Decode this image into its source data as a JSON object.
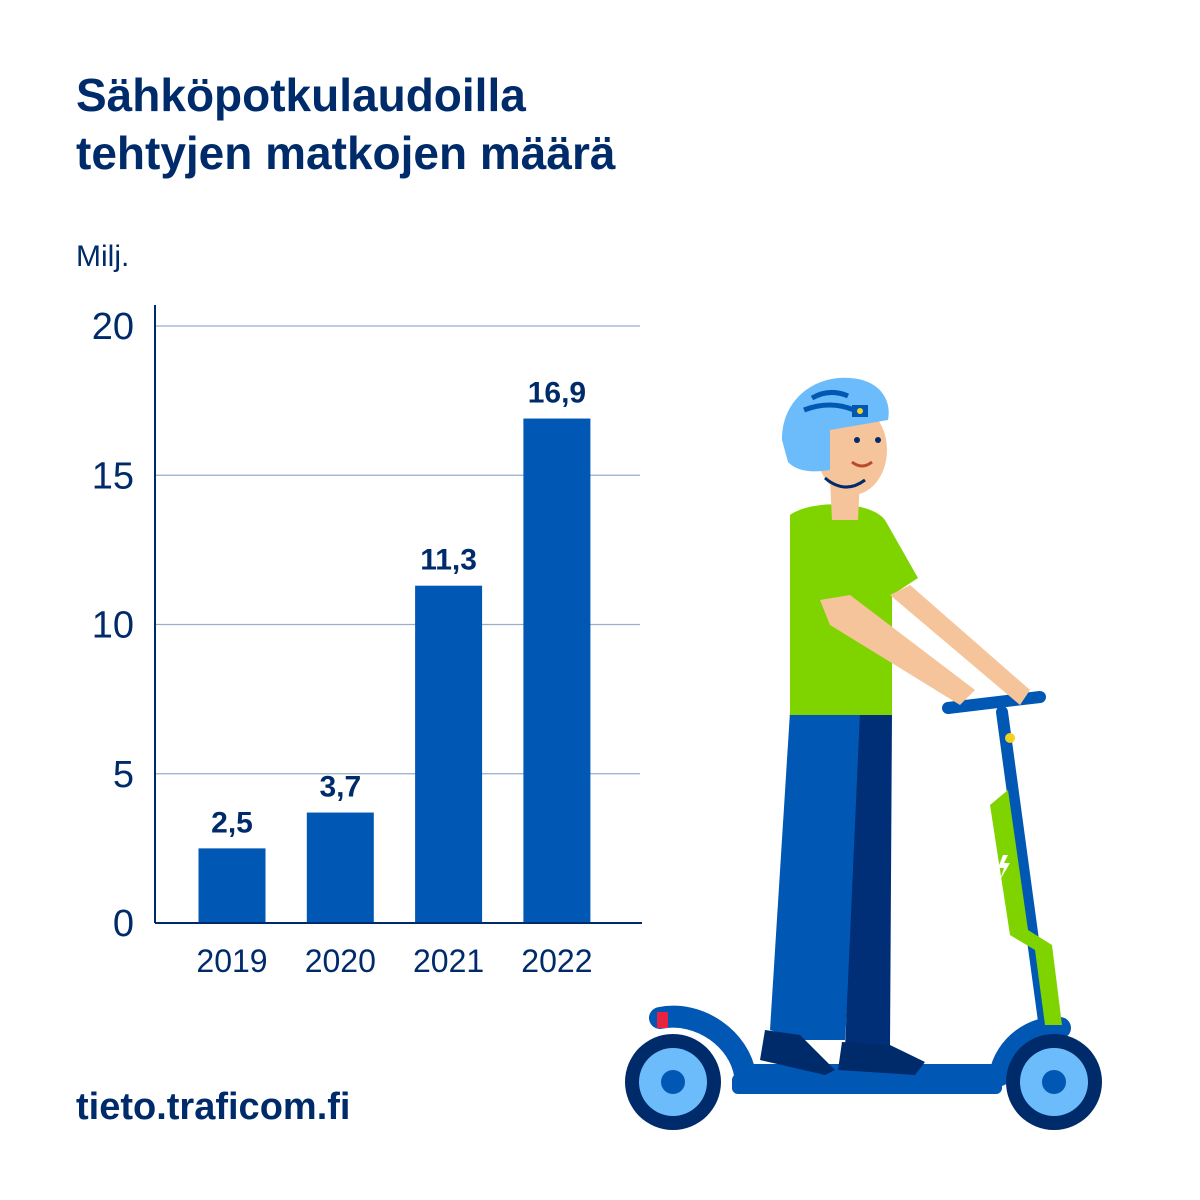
{
  "title_lines": [
    "Sähköpotkulaudoilla",
    "tehtyjen matkojen määrä"
  ],
  "footer": "tieto.traficom.fi",
  "colors": {
    "text": "#002b6b",
    "bar": "#0058b4",
    "grid": "#99aec9",
    "axis": "#002b6b"
  },
  "chart_data": {
    "type": "bar",
    "title": "Sähköpotkulaudoilla tehtyjen matkojen määrä",
    "ylabel": "Milj.",
    "xlabel": "",
    "categories": [
      "2019",
      "2020",
      "2021",
      "2022"
    ],
    "values": [
      2.5,
      3.7,
      11.3,
      16.9
    ],
    "data_labels": [
      "2,5",
      "3,7",
      "11,3",
      "16,9"
    ],
    "yticks": [
      0,
      5,
      10,
      15,
      20
    ],
    "ytick_labels": [
      "0",
      "5",
      "10",
      "15",
      "20"
    ],
    "ylim": [
      0,
      20
    ],
    "grid": true,
    "legend": "none"
  },
  "illustration": "person-riding-electric-scooter"
}
